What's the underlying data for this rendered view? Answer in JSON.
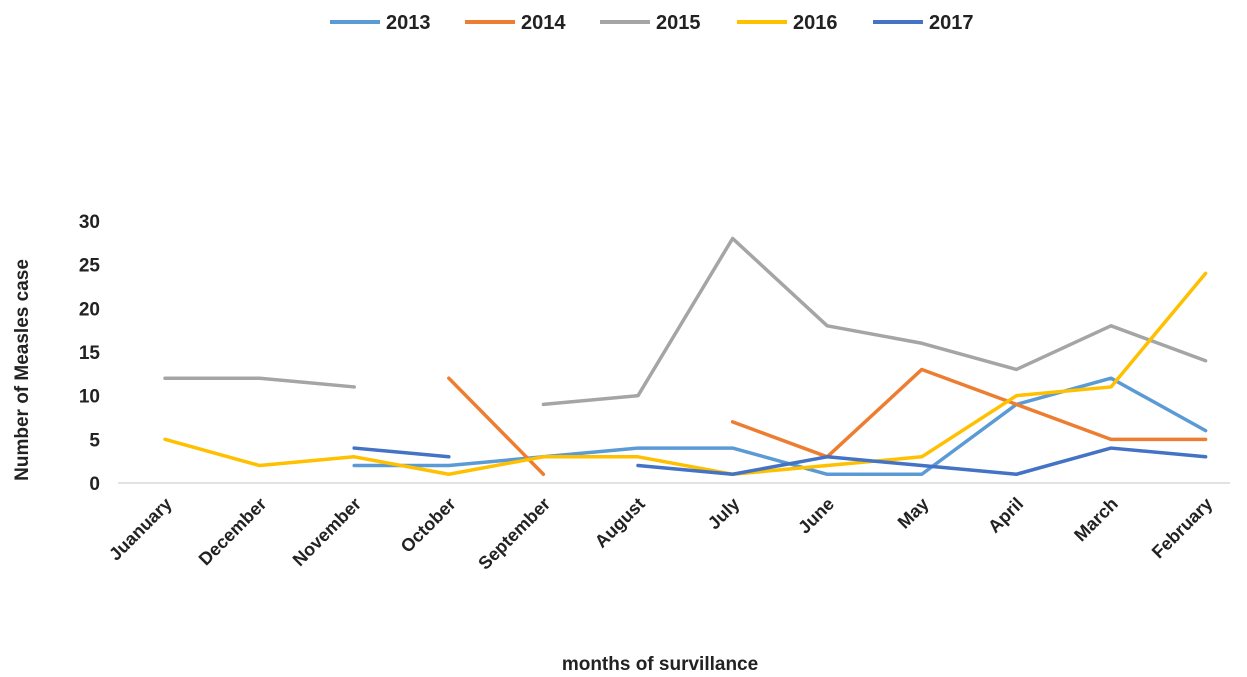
{
  "chart_data": {
    "type": "line",
    "title": "",
    "xlabel": "months of survillance",
    "ylabel": "Number of  Measles case",
    "ylim": [
      0,
      30
    ],
    "yticks": [
      0,
      5,
      10,
      15,
      20,
      25,
      30
    ],
    "grid": false,
    "legend_position": "top",
    "categories": [
      "Juanuary",
      "December",
      "November",
      "October",
      "September",
      "August",
      "July",
      "June",
      "May",
      "April",
      "March",
      "February"
    ],
    "series": [
      {
        "name": "2013",
        "color": "#5b9bd5",
        "values": [
          null,
          null,
          2,
          2,
          3,
          4,
          4,
          1,
          1,
          9,
          12,
          6
        ]
      },
      {
        "name": "2014",
        "color": "#ed7d31",
        "values": [
          null,
          null,
          null,
          12,
          1,
          null,
          7,
          3,
          13,
          9,
          5,
          5
        ]
      },
      {
        "name": "2015",
        "color": "#a5a5a5",
        "values": [
          12,
          12,
          11,
          null,
          9,
          10,
          28,
          18,
          16,
          13,
          18,
          14
        ]
      },
      {
        "name": "2016",
        "color": "#ffc000",
        "values": [
          5,
          2,
          3,
          1,
          3,
          3,
          1,
          2,
          3,
          10,
          11,
          24
        ]
      },
      {
        "name": "2017",
        "color": "#4472c4",
        "values": [
          null,
          null,
          4,
          3,
          null,
          2,
          1,
          3,
          2,
          1,
          4,
          3
        ]
      }
    ]
  }
}
